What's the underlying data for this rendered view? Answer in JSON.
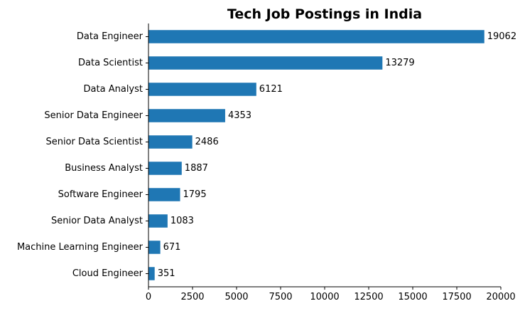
{
  "chart_data": {
    "type": "bar",
    "orientation": "horizontal",
    "title": "Tech Job Postings in India",
    "xlabel": "",
    "ylabel": "",
    "categories": [
      "Data Engineer",
      "Data Scientist",
      "Data Analyst",
      "Senior Data Engineer",
      "Senior Data Scientist",
      "Business Analyst",
      "Software Engineer",
      "Senior Data Analyst",
      "Machine Learning Engineer",
      "Cloud Engineer"
    ],
    "values": [
      19062,
      13279,
      6121,
      4353,
      2486,
      1887,
      1795,
      1083,
      671,
      351
    ],
    "data_labels": [
      "19062",
      "13279",
      "6121",
      "4353",
      "2486",
      "1887",
      "1795",
      "1083",
      "671",
      "351"
    ],
    "xlim": [
      0,
      20000
    ],
    "xticks": [
      0,
      2500,
      5000,
      7500,
      10000,
      12500,
      15000,
      17500,
      20000
    ],
    "xtick_labels": [
      "0",
      "2500",
      "5000",
      "7500",
      "10000",
      "12500",
      "15000",
      "17500",
      "20000"
    ],
    "grid": false,
    "legend": "none",
    "bar_color": "#1f77b4"
  }
}
